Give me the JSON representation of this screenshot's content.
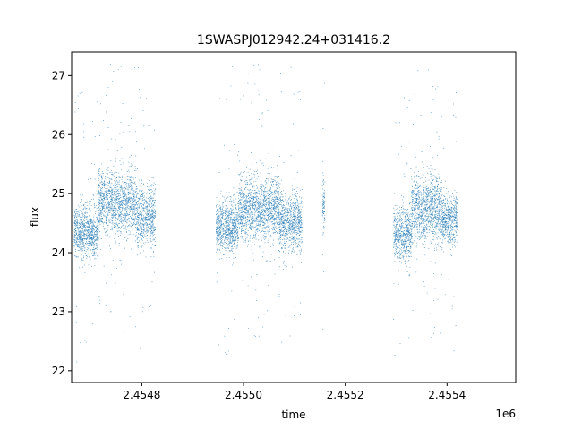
{
  "chart_data": {
    "type": "scatter",
    "title": "1SWASPJ012942.24+031416.2",
    "xlabel": "time",
    "ylabel": "flux",
    "x_offset_label": "1e6",
    "xlim": [
      2454662,
      2455535
    ],
    "ylim": [
      21.8,
      27.4
    ],
    "x_ticks": [
      2454800,
      2455000,
      2455200,
      2455400
    ],
    "x_tick_labels": [
      "2.4548",
      "2.4550",
      "2.4552",
      "2.4554"
    ],
    "y_ticks": [
      22,
      23,
      24,
      25,
      26,
      27
    ],
    "y_tick_labels": [
      "22",
      "23",
      "24",
      "25",
      "26",
      "27"
    ],
    "grid": false,
    "legend": "none",
    "marker_color": "#1f77b4",
    "marker_size": "tiny dots",
    "segments": [
      {
        "x_start": 2454667,
        "x_end": 2454715,
        "baseline": 24.35,
        "spread": 0.32
      },
      {
        "x_start": 2454715,
        "x_end": 2454790,
        "baseline": 24.85,
        "spread": 0.38
      },
      {
        "x_start": 2454790,
        "x_end": 2454827,
        "baseline": 24.6,
        "spread": 0.35
      },
      {
        "x_start": 2454946,
        "x_end": 2454990,
        "baseline": 24.45,
        "spread": 0.33
      },
      {
        "x_start": 2454990,
        "x_end": 2455070,
        "baseline": 24.75,
        "spread": 0.38
      },
      {
        "x_start": 2455070,
        "x_end": 2455115,
        "baseline": 24.5,
        "spread": 0.33
      },
      {
        "x_start": 2455155,
        "x_end": 2455160,
        "baseline": 24.8,
        "spread": 0.3
      },
      {
        "x_start": 2455295,
        "x_end": 2455330,
        "baseline": 24.3,
        "spread": 0.32
      },
      {
        "x_start": 2455330,
        "x_end": 2455390,
        "baseline": 24.75,
        "spread": 0.4
      },
      {
        "x_start": 2455390,
        "x_end": 2455420,
        "baseline": 24.55,
        "spread": 0.3
      }
    ]
  }
}
